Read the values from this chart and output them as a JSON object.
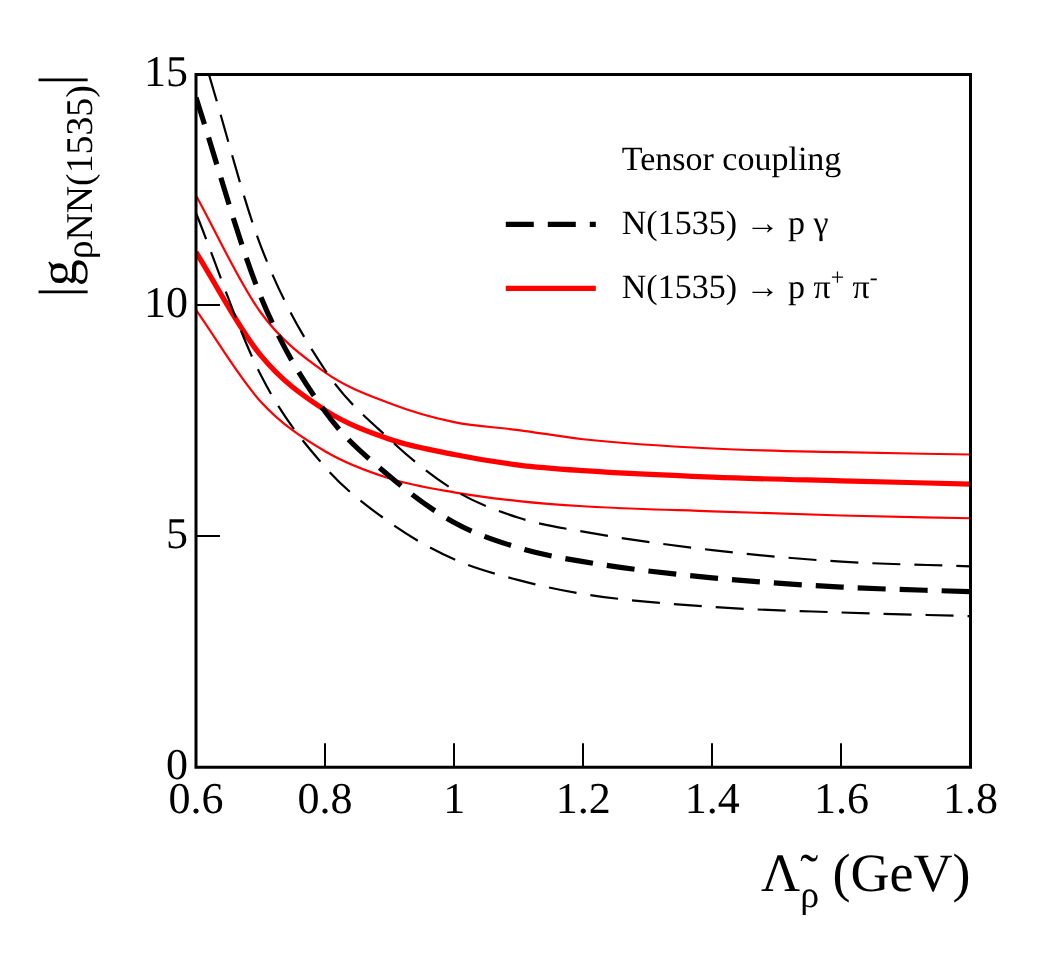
{
  "chart_data": {
    "type": "line",
    "xlabel": "Λ̃$_{ρ}$ (GeV)",
    "ylabel": "|g$_{ρNN(1535)}$|",
    "legend_title": "Tensor coupling",
    "legend": "top right",
    "grid": false,
    "marker": "none",
    "xlim": [
      0.6,
      1.8
    ],
    "xticks": [
      0.6,
      0.8,
      1,
      1.2,
      1.4,
      1.6,
      1.8
    ],
    "ylim": [
      0,
      15
    ],
    "yticks": [
      0,
      5,
      10,
      15
    ],
    "series": [
      {
        "name": "N(1535) → p γ",
        "color": "#000000",
        "line_style": "dashed",
        "x": [
          0.6,
          0.7,
          0.8,
          0.9,
          1.0,
          1.1,
          1.2,
          1.4,
          1.6,
          1.8
        ],
        "values": [
          14.5,
          10.2,
          7.7,
          6.3,
          5.3,
          4.75,
          4.45,
          4.1,
          3.9,
          3.8
        ]
      },
      {
        "color": "#000000",
        "line_style": "dashed",
        "x": [
          0.62,
          0.7,
          0.8,
          0.9,
          1.0,
          1.1,
          1.2,
          1.4,
          1.6,
          1.8
        ],
        "values": [
          15,
          11.3,
          8.6,
          7.1,
          6.0,
          5.4,
          5.1,
          4.7,
          4.45,
          4.35
        ]
      },
      {
        "color": "#000000",
        "line_style": "dashed",
        "x": [
          0.6,
          0.7,
          0.8,
          0.9,
          1.0,
          1.1,
          1.2,
          1.4,
          1.6,
          1.8
        ],
        "values": [
          12.0,
          8.5,
          6.5,
          5.3,
          4.5,
          4.05,
          3.75,
          3.47,
          3.35,
          3.27
        ]
      },
      {
        "name": "N(1535) → p π$^{+}$ π$^{-}$",
        "color": "#ff0000",
        "line_style": "solid",
        "x": [
          0.6,
          0.7,
          0.8,
          0.9,
          1.0,
          1.1,
          1.2,
          1.4,
          1.6,
          1.8
        ],
        "values": [
          11.15,
          8.92,
          7.73,
          7.1,
          6.77,
          6.54,
          6.42,
          6.28,
          6.2,
          6.13
        ]
      },
      {
        "color": "#ff0000",
        "line_style": "solid",
        "x": [
          0.6,
          0.7,
          0.8,
          0.9,
          1.0,
          1.1,
          1.2,
          1.4,
          1.6,
          1.8
        ],
        "values": [
          12.38,
          9.85,
          8.55,
          7.88,
          7.47,
          7.3,
          7.1,
          6.9,
          6.82,
          6.77
        ]
      },
      {
        "color": "#ff0000",
        "line_style": "solid",
        "x": [
          0.6,
          0.7,
          0.8,
          0.9,
          1.0,
          1.1,
          1.2,
          1.4,
          1.6,
          1.8
        ],
        "values": [
          9.9,
          7.92,
          6.84,
          6.25,
          5.95,
          5.76,
          5.65,
          5.54,
          5.45,
          5.39
        ]
      }
    ]
  }
}
